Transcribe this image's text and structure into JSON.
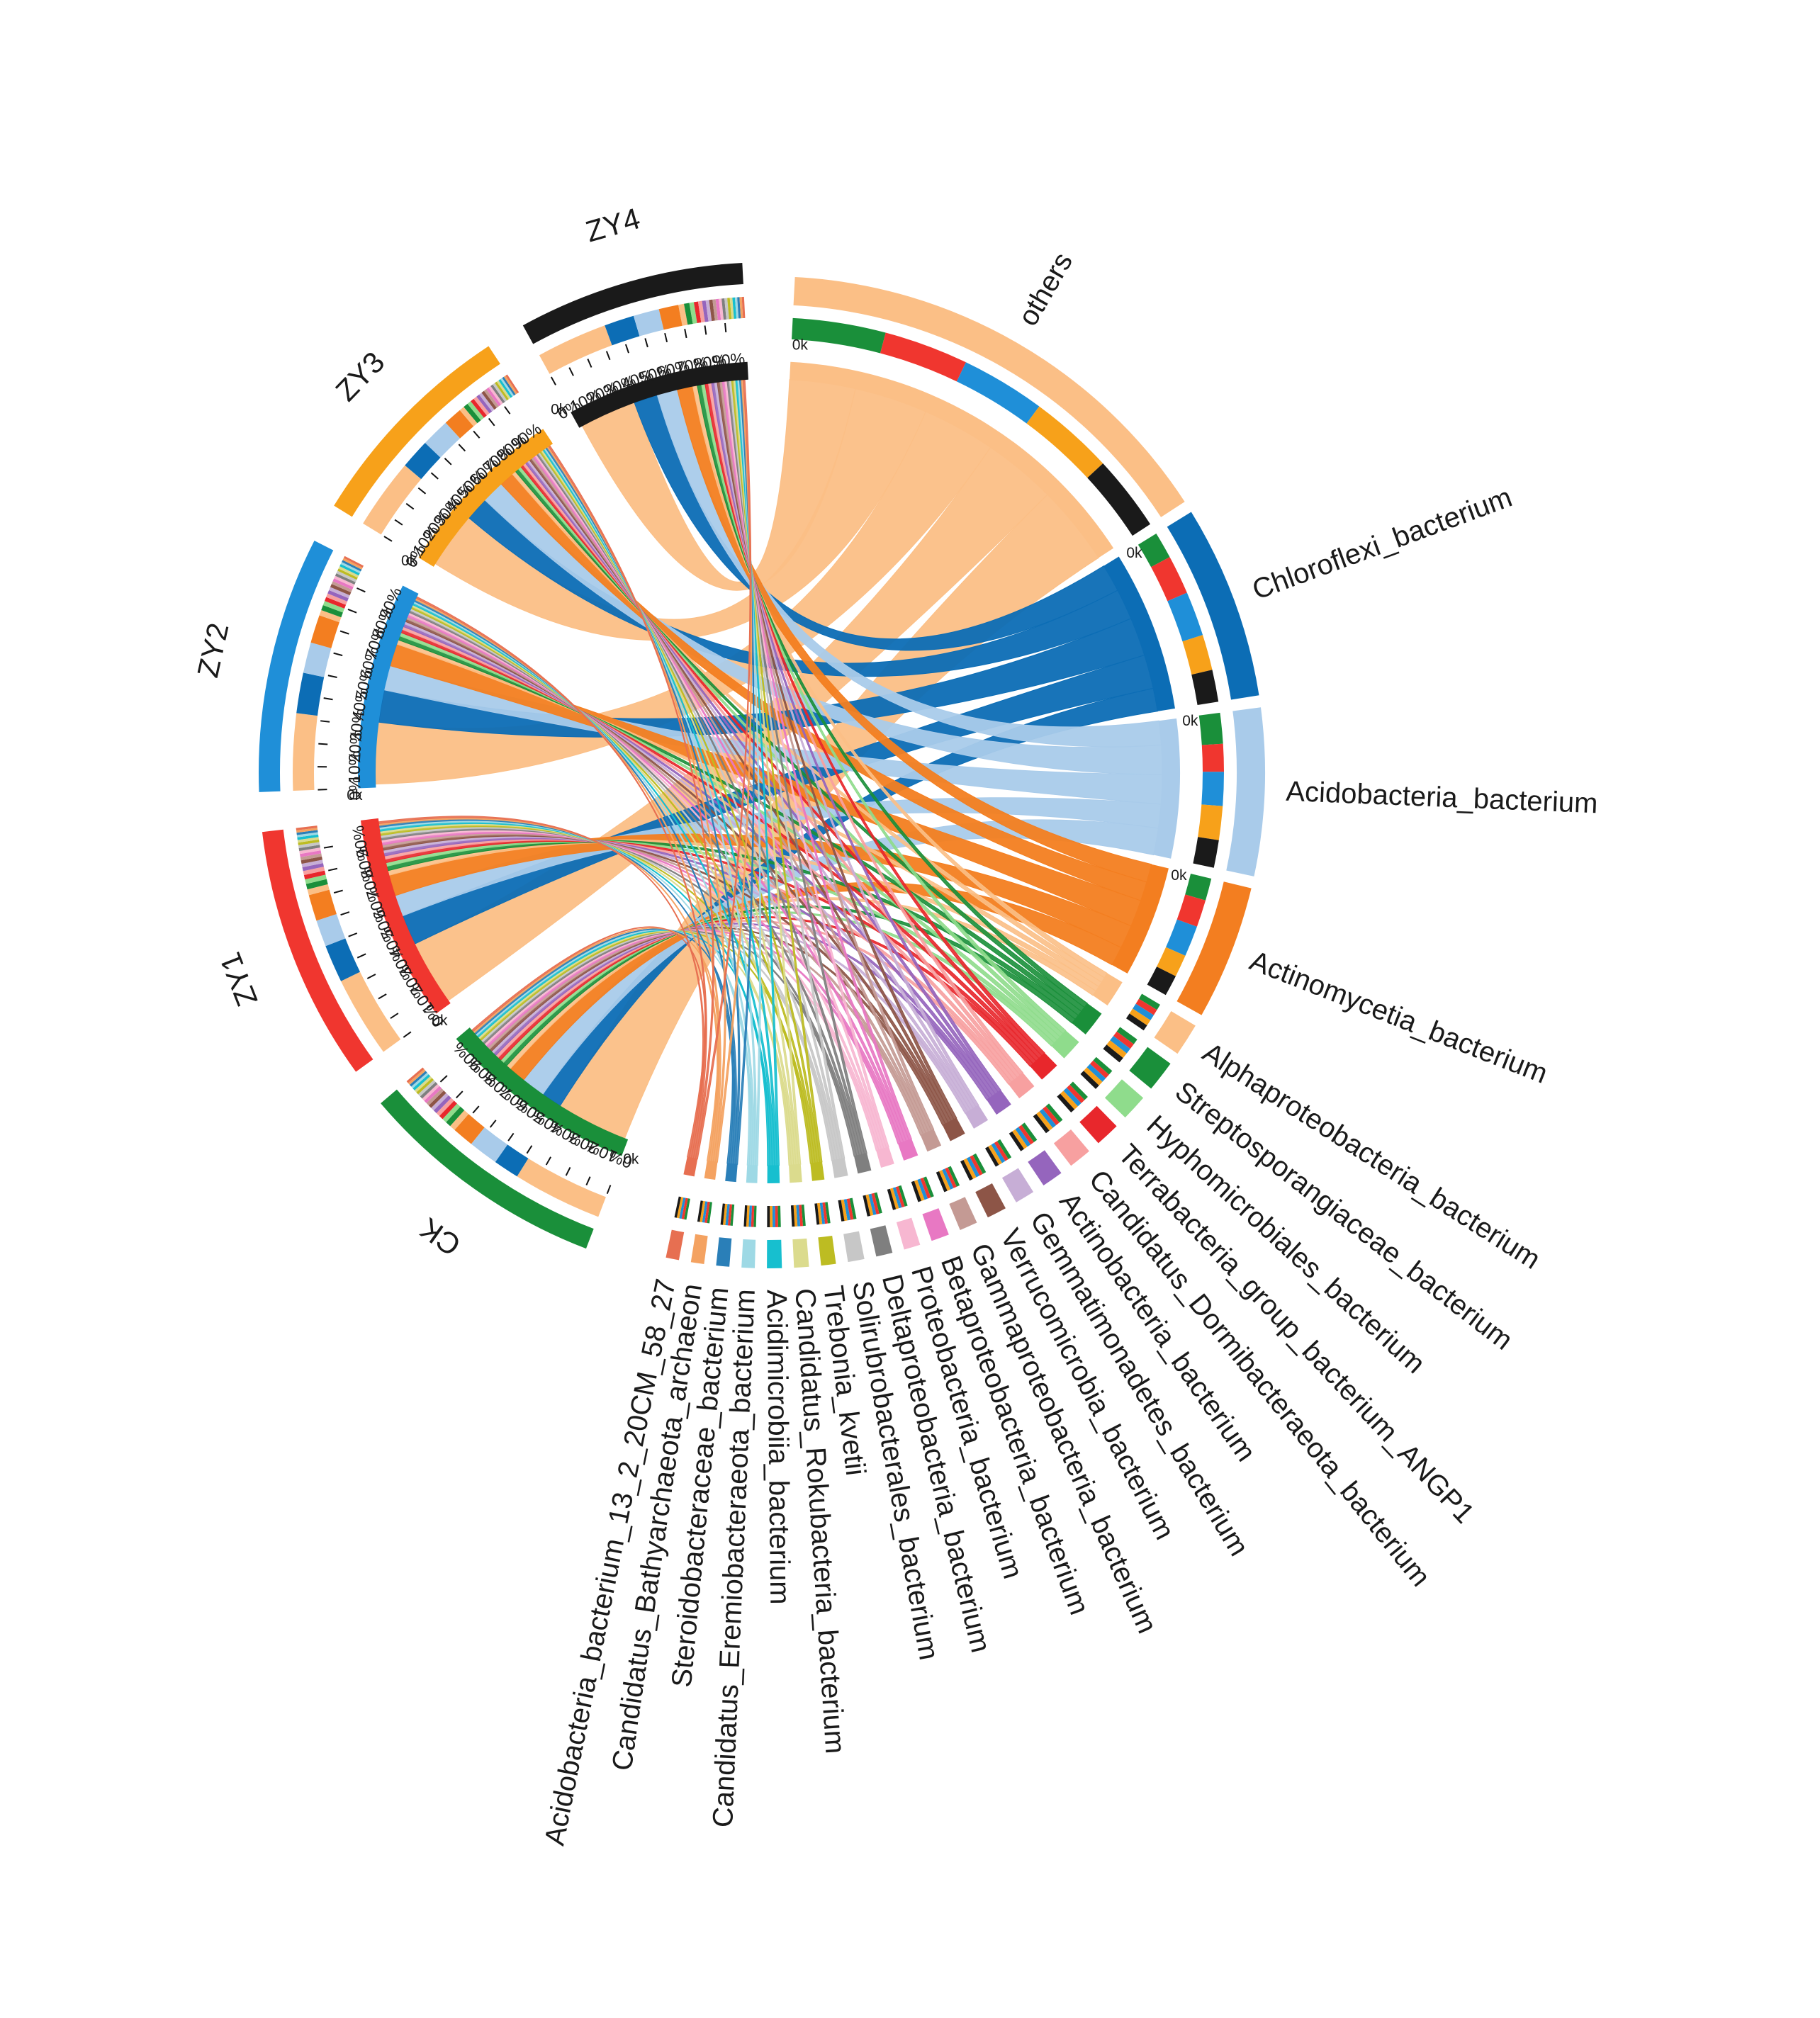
{
  "chart_data": {
    "type": "chord",
    "title": "",
    "samples": [
      "ZY4",
      "ZY3",
      "ZY2",
      "ZY1",
      "CK"
    ],
    "sample_colors": {
      "ZY4": "#1a1a1a",
      "ZY3": "#f7a11a",
      "ZY2": "#1f8fd8",
      "ZY1": "#f0362f",
      "CK": "#1a8f3a"
    },
    "taxa": [
      {
        "name": "others",
        "color": "#fbbf86",
        "total": 280
      },
      {
        "name": "Chloroflexi_bacterium",
        "color": "#0c6db5",
        "total": 118
      },
      {
        "name": "Acidobacteria_bacterium",
        "color": "#a9cbea",
        "total": 102
      },
      {
        "name": "Actinomycetia_bacterium",
        "color": "#f37e20",
        "total": 82
      },
      {
        "name": "Alphaproteobacteria_bacterium",
        "color": "#fbbf86",
        "total": 20
      },
      {
        "name": "Streptosporangiaceae_bacterium",
        "color": "#1a8f3a",
        "total": 19
      },
      {
        "name": "Hyphomicrobiales_bacterium",
        "color": "#8fdc8c",
        "total": 16
      },
      {
        "name": "Terrabacteria_group_bacterium_ANGP1",
        "color": "#e8272c",
        "total": 15
      },
      {
        "name": "Candidatus_Dormibacteraeota_bacterium",
        "color": "#f7a0a0",
        "total": 14
      },
      {
        "name": "Actinobacteria_bacterium",
        "color": "#9565bd",
        "total": 13
      },
      {
        "name": "Gemmatimonadetes_bacterium",
        "color": "#c7aed6",
        "total": 12
      },
      {
        "name": "Verrucomicrobia_bacterium",
        "color": "#8d5547",
        "total": 12
      },
      {
        "name": "Gammaproteobacteria_bacterium",
        "color": "#c49a94",
        "total": 11
      },
      {
        "name": "Betaproteobacteria_bacterium",
        "color": "#e878c3",
        "total": 11
      },
      {
        "name": "Proteobacteria_bacterium",
        "color": "#f7b7d1",
        "total": 10
      },
      {
        "name": "Deltaproteobacteria_bacterium",
        "color": "#7f7f7f",
        "total": 10
      },
      {
        "name": "Solirubrobacterales_bacterium",
        "color": "#c7c7c7",
        "total": 10
      },
      {
        "name": "Trebonia_kvetii",
        "color": "#bdbc22",
        "total": 9
      },
      {
        "name": "Candidatus_Rokubacteria_bacterium",
        "color": "#dbdb8d",
        "total": 9
      },
      {
        "name": "Acidimicrobiia_bacterium",
        "color": "#17bfcf",
        "total": 9
      },
      {
        "name": "Candidatus_Eremiobacteraeota_bacterium",
        "color": "#9ed9e5",
        "total": 8
      },
      {
        "name": "Steroidobacteraceae_bacterium",
        "color": "#2a7fb8",
        "total": 8
      },
      {
        "name": "Candidatus_Bathyarchaeota_archaeon",
        "color": "#f4a261",
        "total": 8
      },
      {
        "name": "Acidobacteria_bacterium_13_2_20CM_58_27",
        "color": "#e76f51",
        "total": 8
      }
    ],
    "sample_totals": {
      "ZY4": 190,
      "ZY3": 185,
      "ZY2": 215,
      "ZY1": 215,
      "CK": 210
    },
    "tick_labels": [
      "0%",
      "10%",
      "20%",
      "30%",
      "40%",
      "50%",
      "60%",
      "70%",
      "80%",
      "90%"
    ],
    "scale_label": "0k"
  }
}
